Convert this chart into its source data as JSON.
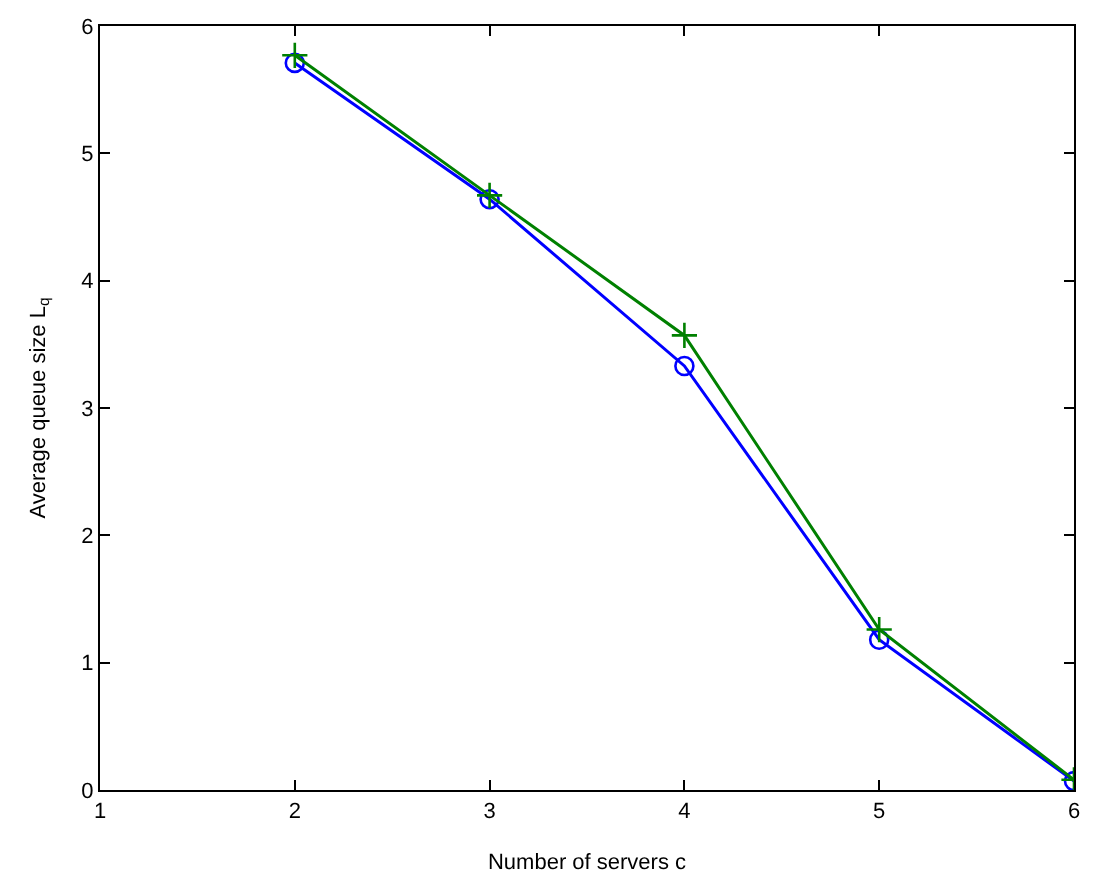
{
  "chart_data": {
    "type": "line",
    "xlabel": "Number of servers c",
    "ylabel": "Average queue size L$_{q}$",
    "x": [
      2,
      3,
      4,
      5,
      6
    ],
    "series": [
      {
        "color": "#0000ff",
        "marker": "circle",
        "values": [
          5.71,
          4.64,
          3.33,
          1.18,
          0.07
        ]
      },
      {
        "color": "#008000",
        "marker": "cross",
        "values": [
          5.77,
          4.67,
          3.57,
          1.26,
          0.08
        ]
      }
    ],
    "xlim": [
      1,
      6
    ],
    "xticks": [
      1,
      2,
      3,
      4,
      5,
      6
    ],
    "ylim": [
      0,
      6
    ],
    "yticks": [
      0,
      1,
      2,
      3,
      4,
      5,
      6
    ],
    "grid": false,
    "line_style": "solid"
  }
}
